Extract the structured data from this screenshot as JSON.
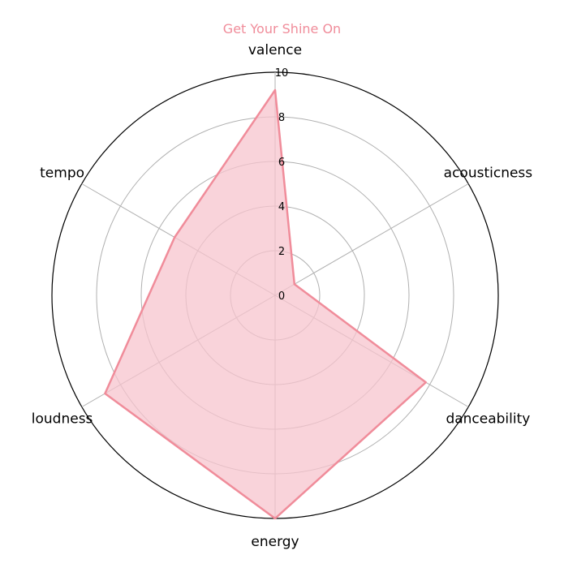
{
  "chart_data": {
    "type": "radar",
    "title": "Get Your Shine On",
    "axes": [
      "valence",
      "acousticness",
      "danceability",
      "energy",
      "loudness",
      "tempo"
    ],
    "values": [
      9.2,
      1.0,
      7.8,
      10.0,
      8.8,
      5.2
    ],
    "rlim": [
      0,
      10
    ],
    "rticks": [
      "0",
      "2",
      "4",
      "6",
      "8",
      "10"
    ],
    "grid": true,
    "colors": {
      "series": "#f08c9a",
      "fill": "#f7c4ce",
      "grid": "#b0b0b0",
      "title": "#f08c9a"
    }
  }
}
